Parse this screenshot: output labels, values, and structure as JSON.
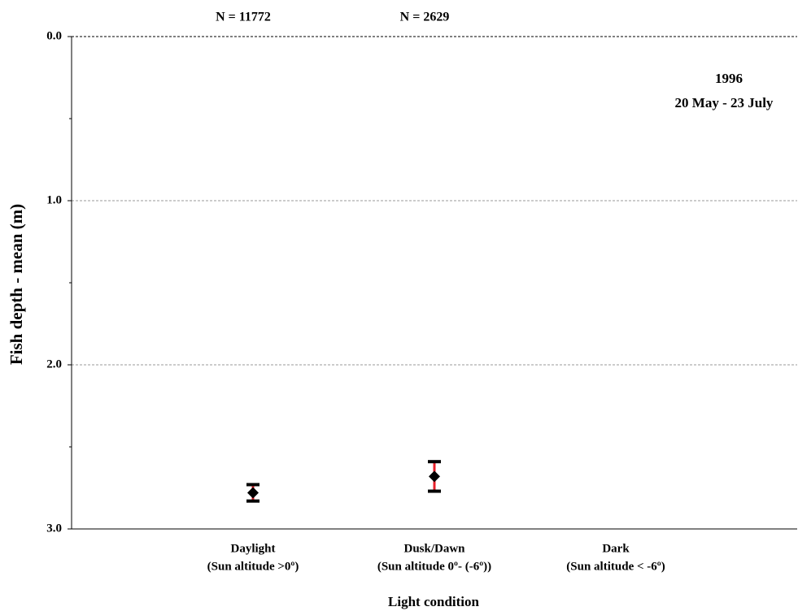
{
  "chart_data": {
    "type": "errorbar",
    "y_label": "Fish depth - mean (m)",
    "x_label": "Light condition",
    "notes": [
      "1996",
      "20 May - 23 July"
    ],
    "categories": [
      "Daylight",
      "Dusk/Dawn",
      "Dark"
    ],
    "category_subtitles": [
      "(Sun altitude >0º)",
      "(Sun altitude 0º- (-6º))",
      "(Sun altitude < -6º)"
    ],
    "counts": [
      "N = 11772",
      "N = 2629",
      null
    ],
    "series": [
      {
        "color": "#000000",
        "values": [
          2.78,
          2.68,
          null
        ],
        "errors": [
          0.05,
          0.09,
          null
        ],
        "error_color": "#e8202a",
        "cap_color": "#000000"
      }
    ],
    "ylim": [
      0,
      3
    ],
    "y_inverted": true,
    "yticks": [
      {
        "value": 0,
        "label": "0.0"
      },
      {
        "value": 1,
        "label": "1.0"
      },
      {
        "value": 2,
        "label": "2.0"
      },
      {
        "value": 3,
        "label": "3.0"
      }
    ],
    "minor_yticks": [
      0.5,
      1.5,
      2.5
    ],
    "grid": true
  }
}
